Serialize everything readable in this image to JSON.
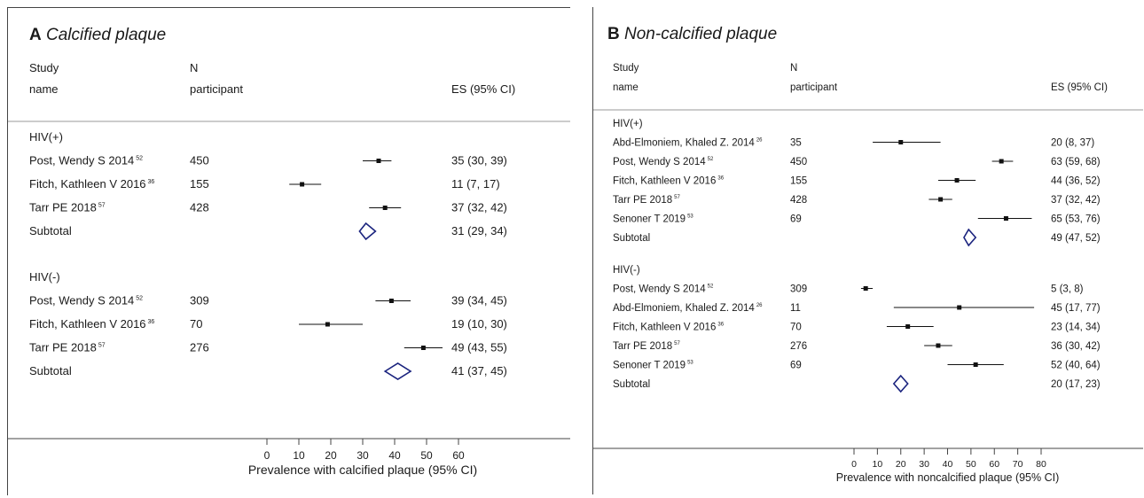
{
  "chart_data": [
    {
      "type": "forest",
      "panel_letter": "A",
      "title": "Calcified plaque",
      "header": {
        "study_1": "Study",
        "study_2": "name",
        "n_1": "N",
        "n_2": "participant",
        "es": "ES (95% CI)"
      },
      "xlabel": "Prevalence with calcified plaque (95% CI)",
      "xlim": [
        0,
        60
      ],
      "xticks": [
        0,
        10,
        20,
        30,
        40,
        50,
        60
      ],
      "groups": [
        {
          "label": "HIV(+)",
          "studies": [
            {
              "name": "Post, Wendy S 2014",
              "ref": "52",
              "n": "450",
              "es": 35,
              "lo": 30,
              "hi": 39,
              "es_text": "35 (30, 39)"
            },
            {
              "name": "Fitch, Kathleen V 2016",
              "ref": "36",
              "n": "155",
              "es": 11,
              "lo": 7,
              "hi": 17,
              "es_text": "11 (7, 17)"
            },
            {
              "name": "Tarr PE 2018",
              "ref": "57",
              "n": "428",
              "es": 37,
              "lo": 32,
              "hi": 42,
              "es_text": "37 (32, 42)"
            }
          ],
          "subtotal": {
            "label": "Subtotal",
            "es": 31,
            "lo": 29,
            "hi": 34,
            "es_text": "31 (29, 34)"
          }
        },
        {
          "label": "HIV(-)",
          "studies": [
            {
              "name": "Post, Wendy S 2014",
              "ref": "52",
              "n": "309",
              "es": 39,
              "lo": 34,
              "hi": 45,
              "es_text": "39 (34, 45)"
            },
            {
              "name": "Fitch, Kathleen V 2016",
              "ref": "36",
              "n": "70",
              "es": 19,
              "lo": 10,
              "hi": 30,
              "es_text": "19 (10, 30)"
            },
            {
              "name": "Tarr PE 2018",
              "ref": "57",
              "n": "276",
              "es": 49,
              "lo": 43,
              "hi": 55,
              "es_text": "49 (43, 55)"
            }
          ],
          "subtotal": {
            "label": "Subtotal",
            "es": 41,
            "lo": 37,
            "hi": 45,
            "es_text": "41 (37, 45)"
          }
        }
      ]
    },
    {
      "type": "forest",
      "panel_letter": "B",
      "title": "Non-calcified plaque",
      "header": {
        "study_1": "Study",
        "study_2": "name",
        "n_1": "N",
        "n_2": "participant",
        "es": "ES (95% CI)"
      },
      "xlabel": "Prevalence with noncalcified plaque (95% CI)",
      "xlim": [
        0,
        80
      ],
      "xticks": [
        0,
        10,
        20,
        30,
        40,
        50,
        60,
        70,
        80
      ],
      "groups": [
        {
          "label": "HIV(+)",
          "studies": [
            {
              "name": "Abd-Elmoniem, Khaled Z. 2014",
              "ref": "26",
              "n": "35",
              "es": 20,
              "lo": 8,
              "hi": 37,
              "es_text": "20 (8, 37)"
            },
            {
              "name": "Post, Wendy S 2014",
              "ref": "52",
              "n": "450",
              "es": 63,
              "lo": 59,
              "hi": 68,
              "es_text": "63 (59, 68)"
            },
            {
              "name": "Fitch, Kathleen V 2016",
              "ref": "36",
              "n": "155",
              "es": 44,
              "lo": 36,
              "hi": 52,
              "es_text": "44 (36, 52)"
            },
            {
              "name": "Tarr PE 2018",
              "ref": "57",
              "n": "428",
              "es": 37,
              "lo": 32,
              "hi": 42,
              "es_text": "37 (32, 42)"
            },
            {
              "name": "Senoner T 2019",
              "ref": "53",
              "n": "69",
              "es": 65,
              "lo": 53,
              "hi": 76,
              "es_text": "65 (53, 76)"
            }
          ],
          "subtotal": {
            "label": "Subtotal",
            "es": 49,
            "lo": 47,
            "hi": 52,
            "es_text": "49 (47, 52)"
          }
        },
        {
          "label": "HIV(-)",
          "studies": [
            {
              "name": "Post, Wendy S 2014",
              "ref": "52",
              "n": "309",
              "es": 5,
              "lo": 3,
              "hi": 8,
              "es_text": "5 (3, 8)"
            },
            {
              "name": "Abd-Elmoniem, Khaled Z. 2014",
              "ref": "26",
              "n": "11",
              "es": 45,
              "lo": 17,
              "hi": 77,
              "es_text": "45 (17, 77)"
            },
            {
              "name": "Fitch, Kathleen V 2016",
              "ref": "36",
              "n": "70",
              "es": 23,
              "lo": 14,
              "hi": 34,
              "es_text": "23 (14, 34)"
            },
            {
              "name": "Tarr PE 2018",
              "ref": "57",
              "n": "276",
              "es": 36,
              "lo": 30,
              "hi": 42,
              "es_text": "36 (30, 42)"
            },
            {
              "name": "Senoner T 2019",
              "ref": "53",
              "n": "69",
              "es": 52,
              "lo": 40,
              "hi": 64,
              "es_text": "52 (40, 64)"
            }
          ],
          "subtotal": {
            "label": "Subtotal",
            "es": 20,
            "lo": 17,
            "hi": 23,
            "es_text": "20 (17, 23)"
          }
        }
      ]
    }
  ],
  "colors": {
    "diamond": "#1a237e",
    "text": "#1a1a1a",
    "axis": "#444444",
    "marker": "#111111"
  }
}
